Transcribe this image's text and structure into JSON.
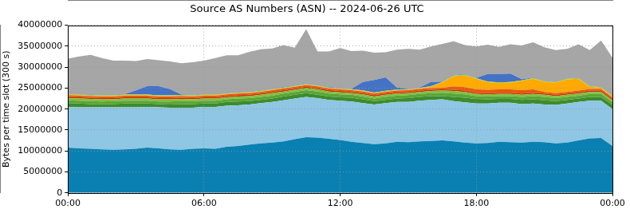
{
  "chart_data": {
    "type": "area",
    "title": "Source AS Numbers (ASN) -- 2024-06-26 UTC",
    "y_label": "Bytes per time slot (300 s)",
    "categories": [
      "00:00",
      null,
      null,
      null,
      null,
      null,
      null,
      null,
      null,
      null,
      null,
      null,
      "06:00",
      null,
      null,
      null,
      null,
      null,
      null,
      null,
      null,
      null,
      null,
      null,
      "12:00",
      null,
      null,
      null,
      null,
      null,
      null,
      null,
      null,
      null,
      null,
      null,
      "18:00",
      null,
      null,
      null,
      null,
      null,
      null,
      null,
      null,
      null,
      null,
      null,
      "00:00"
    ],
    "ylim": [
      0,
      40000000
    ],
    "yticks": [
      0,
      5000000,
      10000000,
      15000000,
      20000000,
      25000000,
      30000000,
      35000000,
      40000000
    ],
    "grid": true,
    "stacked": true,
    "series": [
      {
        "color": "#0a80b2",
        "values": [
          10800000,
          10600000,
          10500000,
          10400000,
          10300000,
          10400000,
          10500000,
          10800000,
          10600000,
          10400000,
          10300000,
          10500000,
          10600000,
          10500000,
          11000000,
          11200000,
          11500000,
          11800000,
          12000000,
          12300000,
          12800000,
          13300000,
          13200000,
          12900000,
          12600000,
          12200000,
          11900000,
          11600000,
          11800000,
          12200000,
          12100000,
          12300000,
          12400000,
          12500000,
          12300000,
          12000000,
          11800000,
          11900000,
          12200000,
          12100000,
          12000000,
          12200000,
          12100000,
          11800000,
          12000000,
          12500000,
          13000000,
          13100000,
          11200000
        ]
      },
      {
        "color": "#8ec6e4",
        "values": [
          9700000,
          9800000,
          9900000,
          10000000,
          10100000,
          10000000,
          9900000,
          9700000,
          9800000,
          9900000,
          10000000,
          9800000,
          9900000,
          10000000,
          9800000,
          9700000,
          9600000,
          9600000,
          9700000,
          9800000,
          9700000,
          9600000,
          9400000,
          9300000,
          9400000,
          9600000,
          9500000,
          9500000,
          9600000,
          9500000,
          9600000,
          9700000,
          9800000,
          9800000,
          9600000,
          9600000,
          9500000,
          9400000,
          9300000,
          9400000,
          9200000,
          9100000,
          9000000,
          9200000,
          9300000,
          9200000,
          9000000,
          8900000,
          8800000
        ]
      },
      {
        "color": "#3d8b2c",
        "values": [
          900000,
          900000,
          800000,
          800000,
          800000,
          900000,
          900000,
          800000,
          800000,
          800000,
          900000,
          900000,
          800000,
          800000,
          900000,
          900000,
          800000,
          800000,
          800000,
          900000,
          900000,
          900000,
          800000,
          800000,
          800000,
          900000,
          900000,
          800000,
          800000,
          800000,
          900000,
          900000,
          900000,
          800000,
          1000000,
          1100000,
          1100000,
          1000000,
          900000,
          900000,
          1000000,
          1000000,
          1000000,
          900000,
          900000,
          800000,
          900000,
          900000,
          1000000
        ]
      },
      {
        "color": "#5aa637",
        "values": [
          700000,
          700000,
          700000,
          600000,
          700000,
          700000,
          700000,
          700000,
          600000,
          700000,
          700000,
          700000,
          700000,
          700000,
          600000,
          700000,
          700000,
          700000,
          700000,
          700000,
          700000,
          700000,
          800000,
          700000,
          700000,
          700000,
          700000,
          600000,
          700000,
          700000,
          700000,
          700000,
          700000,
          800000,
          800000,
          800000,
          700000,
          700000,
          700000,
          700000,
          700000,
          800000,
          800000,
          700000,
          700000,
          700000,
          700000,
          700000,
          700000
        ]
      },
      {
        "color": "#80bf40",
        "values": [
          500000,
          500000,
          500000,
          500000,
          400000,
          500000,
          500000,
          500000,
          500000,
          500000,
          500000,
          400000,
          500000,
          500000,
          500000,
          500000,
          500000,
          500000,
          600000,
          500000,
          500000,
          500000,
          500000,
          500000,
          500000,
          400000,
          500000,
          500000,
          500000,
          500000,
          500000,
          500000,
          500000,
          500000,
          600000,
          600000,
          500000,
          500000,
          500000,
          500000,
          500000,
          500000,
          500000,
          500000,
          500000,
          500000,
          500000,
          500000,
          400000
        ]
      },
      {
        "color": "#c83200",
        "values": [
          300000,
          300000,
          300000,
          300000,
          300000,
          300000,
          300000,
          300000,
          300000,
          300000,
          300000,
          300000,
          300000,
          300000,
          300000,
          300000,
          300000,
          300000,
          300000,
          300000,
          300000,
          300000,
          300000,
          300000,
          300000,
          300000,
          300000,
          300000,
          300000,
          300000,
          300000,
          300000,
          300000,
          300000,
          300000,
          300000,
          300000,
          300000,
          300000,
          300000,
          300000,
          300000,
          300000,
          300000,
          300000,
          300000,
          300000,
          300000,
          300000
        ]
      },
      {
        "color": "#e8590c",
        "values": [
          400000,
          400000,
          400000,
          400000,
          400000,
          400000,
          400000,
          400000,
          400000,
          400000,
          400000,
          400000,
          400000,
          400000,
          400000,
          400000,
          400000,
          400000,
          400000,
          400000,
          400000,
          400000,
          400000,
          400000,
          400000,
          400000,
          400000,
          400000,
          400000,
          400000,
          400000,
          400000,
          400000,
          400000,
          800000,
          800000,
          800000,
          800000,
          800000,
          800000,
          800000,
          800000,
          400000,
          400000,
          400000,
          400000,
          400000,
          400000,
          400000
        ]
      },
      {
        "color": "#ffaa00",
        "values": [
          100000,
          100000,
          100000,
          100000,
          100000,
          100000,
          100000,
          100000,
          100000,
          100000,
          100000,
          100000,
          100000,
          100000,
          100000,
          100000,
          100000,
          100000,
          100000,
          100000,
          100000,
          100000,
          100000,
          100000,
          100000,
          100000,
          100000,
          100000,
          100000,
          100000,
          100000,
          100000,
          300000,
          1200000,
          2500000,
          2800000,
          2500000,
          1800000,
          1500000,
          1600000,
          2200000,
          2500000,
          2400000,
          2500000,
          3000000,
          2800000,
          500000,
          300000,
          200000
        ]
      },
      {
        "color": "#99cc33",
        "values": [
          150000,
          150000,
          150000,
          150000,
          150000,
          150000,
          150000,
          150000,
          150000,
          150000,
          150000,
          150000,
          150000,
          150000,
          150000,
          150000,
          150000,
          150000,
          150000,
          150000,
          150000,
          150000,
          150000,
          150000,
          150000,
          150000,
          150000,
          150000,
          150000,
          150000,
          150000,
          150000,
          150000,
          150000,
          150000,
          150000,
          150000,
          150000,
          150000,
          150000,
          150000,
          150000,
          150000,
          150000,
          150000,
          150000,
          150000,
          150000,
          150000
        ]
      },
      {
        "color": "#4472c4",
        "values": [
          100000,
          100000,
          100000,
          100000,
          100000,
          100000,
          1000000,
          2000000,
          2200000,
          1500000,
          100000,
          100000,
          100000,
          100000,
          100000,
          100000,
          100000,
          100000,
          100000,
          100000,
          100000,
          100000,
          100000,
          100000,
          100000,
          100000,
          2000000,
          3000000,
          3200000,
          500000,
          100000,
          100000,
          1000000,
          100000,
          100000,
          100000,
          100000,
          1800000,
          2000000,
          2000000,
          300000,
          100000,
          100000,
          100000,
          100000,
          100000,
          100000,
          100000,
          100000
        ]
      },
      {
        "color": "#a6a6a6",
        "values": [
          8400000,
          9000000,
          9500000,
          8800000,
          8200000,
          8000000,
          7000000,
          6500000,
          6200000,
          6600000,
          7500000,
          7800000,
          8000000,
          8600000,
          9000000,
          8800000,
          9500000,
          9800000,
          9600000,
          10000000,
          9000000,
          13000000,
          8000000,
          8500000,
          9500000,
          9000000,
          7500000,
          6500000,
          6000000,
          9000000,
          9500000,
          9000000,
          8500000,
          9000000,
          8000000,
          7000000,
          7500000,
          7000000,
          6500000,
          7000000,
          8000000,
          8500000,
          8000000,
          7500000,
          7000000,
          8000000,
          8500000,
          11000000,
          9000000
        ]
      }
    ]
  }
}
